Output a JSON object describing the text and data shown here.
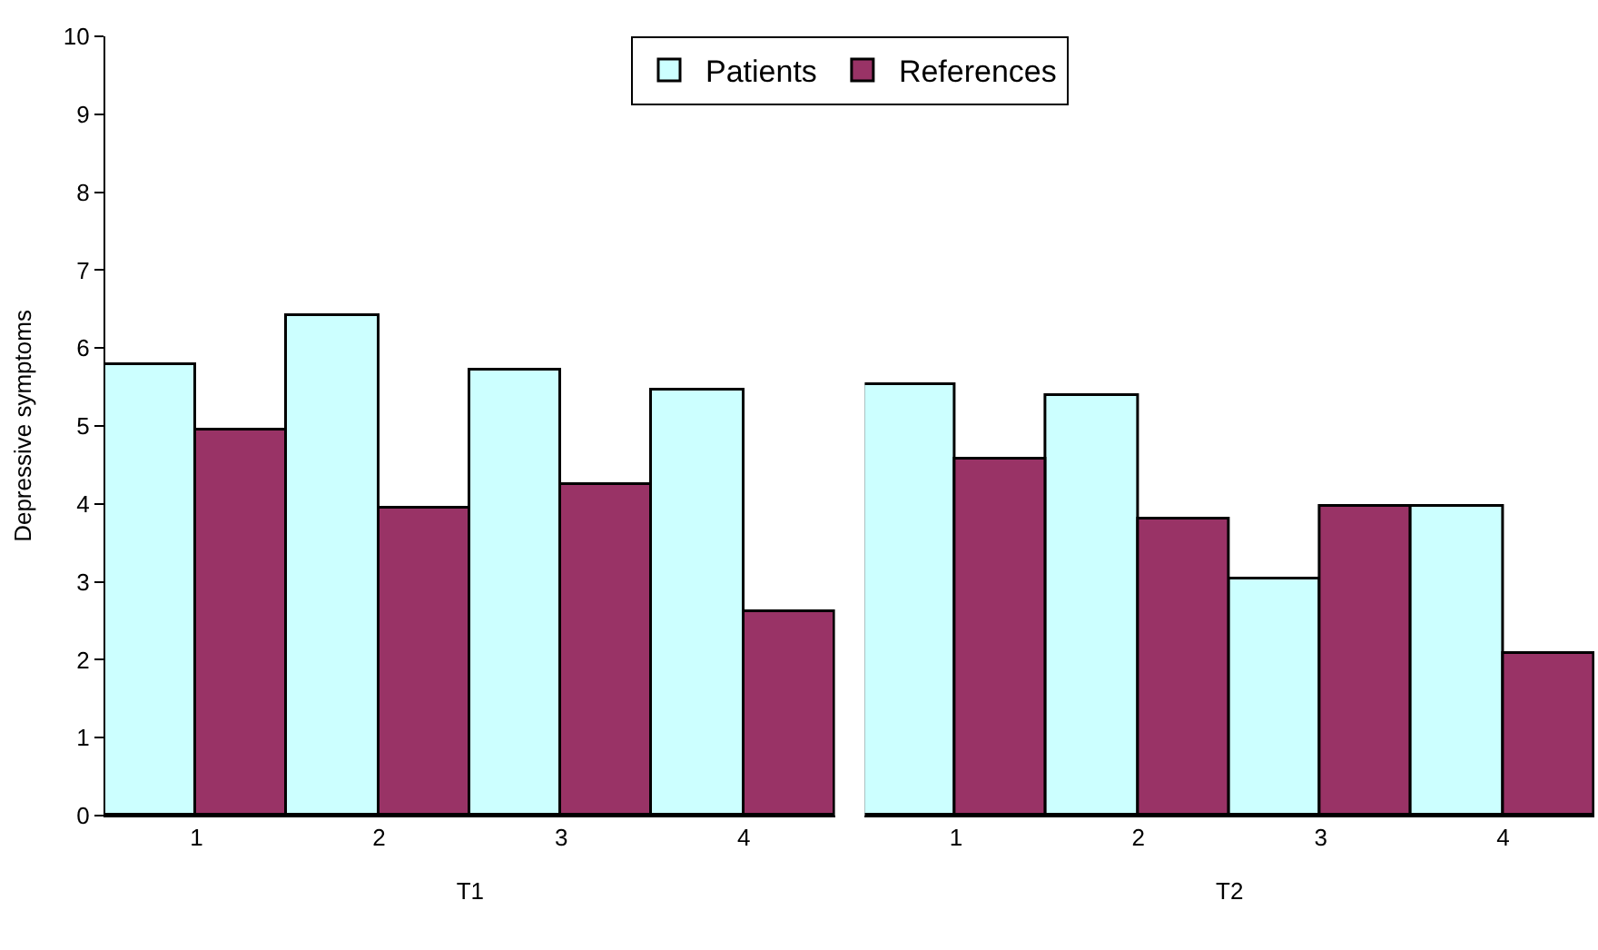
{
  "chart_data": [
    {
      "type": "bar",
      "xlabel": "T1",
      "ylabel": "Depressive symptoms",
      "categories": [
        "1",
        "2",
        "3",
        "4"
      ],
      "ylim": [
        0,
        10
      ],
      "yticks": [
        0,
        1,
        2,
        3,
        4,
        5,
        6,
        7,
        8,
        9,
        10
      ],
      "legend": "top",
      "series": [
        {
          "name": "Patients",
          "color": "#ccffff",
          "values": [
            5.78,
            6.4,
            5.7,
            5.45
          ]
        },
        {
          "name": "References",
          "color": "#993366",
          "values": [
            4.95,
            3.95,
            4.25,
            2.6
          ]
        }
      ]
    },
    {
      "type": "bar",
      "xlabel": "T2",
      "categories": [
        "1",
        "2",
        "3",
        "4"
      ],
      "ylim": [
        0,
        10
      ],
      "tick_labels": "x",
      "legend": false,
      "series": [
        {
          "color": "#ccffff",
          "values": [
            5.52,
            5.38,
            3.03,
            3.96
          ]
        },
        {
          "color": "#993366",
          "values": [
            4.57,
            3.8,
            3.96,
            2.07
          ]
        }
      ]
    }
  ]
}
